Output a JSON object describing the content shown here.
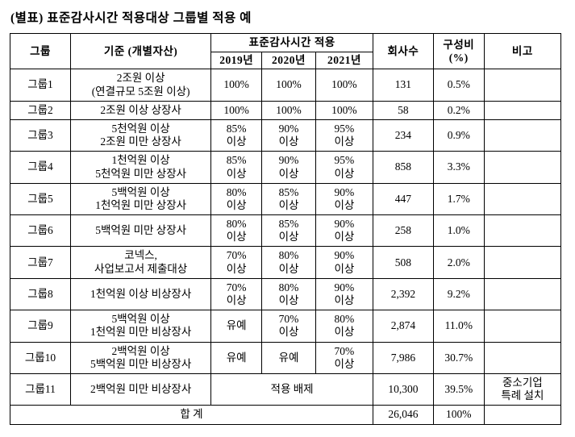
{
  "title": "(별표) 표준감사시간 적용대상 그룹별 적용 예",
  "table": {
    "headers": {
      "group": "그룹",
      "criteria": "기준 (개별자산)",
      "application": "표준감사시간 적용",
      "years": [
        "2019년",
        "2020년",
        "2021년"
      ],
      "company_count": "회사수",
      "composition": "구성비\n(%)",
      "remarks": "비고"
    },
    "rows": [
      {
        "group": "그룹1",
        "criteria": "2조원 이상\n(연결규모 5조원 이상)",
        "y2019": "100%",
        "y2020": "100%",
        "y2021": "100%",
        "count": "131",
        "ratio": "0.5%",
        "remark": ""
      },
      {
        "group": "그룹2",
        "criteria": "2조원 이상 상장사",
        "y2019": "100%",
        "y2020": "100%",
        "y2021": "100%",
        "count": "58",
        "ratio": "0.2%",
        "remark": ""
      },
      {
        "group": "그룹3",
        "criteria": "5천억원 이상\n2조원 미만 상장사",
        "y2019": "85%\n이상",
        "y2020": "90%\n이상",
        "y2021": "95%\n이상",
        "count": "234",
        "ratio": "0.9%",
        "remark": ""
      },
      {
        "group": "그룹4",
        "criteria": "1천억원 이상\n5천억원 미만 상장사",
        "y2019": "85%\n이상",
        "y2020": "90%\n이상",
        "y2021": "95%\n이상",
        "count": "858",
        "ratio": "3.3%",
        "remark": ""
      },
      {
        "group": "그룹5",
        "criteria": "5백억원 이상\n1천억원 미만 상장사",
        "y2019": "80%\n이상",
        "y2020": "85%\n이상",
        "y2021": "90%\n이상",
        "count": "447",
        "ratio": "1.7%",
        "remark": ""
      },
      {
        "group": "그룹6",
        "criteria": "5백억원 미만 상장사",
        "y2019": "80%\n이상",
        "y2020": "85%\n이상",
        "y2021": "90%\n이상",
        "count": "258",
        "ratio": "1.0%",
        "remark": ""
      },
      {
        "group": "그룹7",
        "criteria": "코넥스,\n사업보고서 제출대상",
        "y2019": "70%\n이상",
        "y2020": "80%\n이상",
        "y2021": "90%\n이상",
        "count": "508",
        "ratio": "2.0%",
        "remark": ""
      },
      {
        "group": "그룹8",
        "criteria": "1천억원 이상 비상장사",
        "y2019": "70%\n이상",
        "y2020": "80%\n이상",
        "y2021": "90%\n이상",
        "count": "2,392",
        "ratio": "9.2%",
        "remark": ""
      },
      {
        "group": "그룹9",
        "criteria": "5백억원 이상\n1천억원 미만 비상장사",
        "y2019": "유예",
        "y2020": "70%\n이상",
        "y2021": "80%\n이상",
        "count": "2,874",
        "ratio": "11.0%",
        "remark": ""
      },
      {
        "group": "그룹10",
        "criteria": "2백억원 이상\n5백억원 미만 비상장사",
        "y2019": "유예",
        "y2020": "유예",
        "y2021": "70%\n이상",
        "count": "7,986",
        "ratio": "30.7%",
        "remark": ""
      },
      {
        "group": "그룹11",
        "criteria": "2백억원 미만 비상장사",
        "merged": "적용 배제",
        "count": "10,300",
        "ratio": "39.5%",
        "remark": "중소기업\n특례 설치"
      }
    ],
    "total": {
      "label": "합 계",
      "count": "26,046",
      "ratio": "100%",
      "remark": ""
    }
  }
}
